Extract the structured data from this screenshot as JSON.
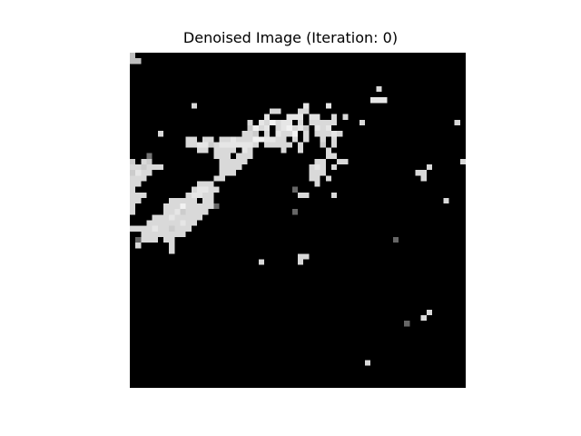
{
  "figure": {
    "title": "Denoised Image (Iteration: 0)"
  },
  "image": {
    "rows": 60,
    "cols": 60,
    "background": "#000000",
    "pixels": [
      [
        0,
        0,
        0.75
      ],
      [
        1,
        0,
        0.75
      ],
      [
        1,
        1,
        0.75
      ],
      [
        11,
        36,
        0.85
      ],
      [
        6,
        44,
        0.85
      ],
      [
        8,
        43,
        0.9
      ],
      [
        8,
        44,
        0.9
      ],
      [
        8,
        45,
        0.9
      ],
      [
        9,
        11,
        0.85
      ],
      [
        9,
        31,
        0.9
      ],
      [
        9,
        35,
        0.9
      ],
      [
        10,
        25,
        0.85
      ],
      [
        10,
        26,
        0.85
      ],
      [
        10,
        30,
        0.85
      ],
      [
        10,
        31,
        0.85
      ],
      [
        11,
        24,
        0.9
      ],
      [
        11,
        28,
        0.9
      ],
      [
        11,
        29,
        0.9
      ],
      [
        11,
        30,
        0.9
      ],
      [
        11,
        32,
        0.9
      ],
      [
        11,
        33,
        0.9
      ],
      [
        11,
        38,
        0.85
      ],
      [
        12,
        21,
        0.85
      ],
      [
        12,
        23,
        0.9
      ],
      [
        12,
        24,
        0.85
      ],
      [
        12,
        25,
        0.95
      ],
      [
        12,
        26,
        0.85
      ],
      [
        12,
        27,
        0.9
      ],
      [
        12,
        28,
        0.9
      ],
      [
        12,
        30,
        0.85
      ],
      [
        12,
        32,
        0.85
      ],
      [
        12,
        33,
        0.85
      ],
      [
        12,
        34,
        0.85
      ],
      [
        12,
        35,
        0.85
      ],
      [
        12,
        36,
        0.85
      ],
      [
        12,
        41,
        0.85
      ],
      [
        12,
        58,
        0.85
      ],
      [
        13,
        21,
        0.8
      ],
      [
        13,
        22,
        0.95
      ],
      [
        13,
        23,
        0.85
      ],
      [
        13,
        24,
        0.9
      ],
      [
        13,
        26,
        0.85
      ],
      [
        13,
        27,
        0.9
      ],
      [
        13,
        28,
        0.95
      ],
      [
        13,
        29,
        0.85
      ],
      [
        13,
        30,
        0.9
      ],
      [
        13,
        31,
        0.8
      ],
      [
        13,
        33,
        0.9
      ],
      [
        13,
        34,
        0.85
      ],
      [
        13,
        35,
        0.9
      ],
      [
        14,
        5,
        0.85
      ],
      [
        14,
        20,
        0.85
      ],
      [
        14,
        21,
        0.85
      ],
      [
        14,
        22,
        0.8
      ],
      [
        14,
        24,
        0.85
      ],
      [
        14,
        26,
        0.9
      ],
      [
        14,
        27,
        0.85
      ],
      [
        14,
        28,
        0.85
      ],
      [
        14,
        29,
        0.95
      ],
      [
        14,
        31,
        0.85
      ],
      [
        14,
        33,
        0.85
      ],
      [
        14,
        34,
        0.85
      ],
      [
        14,
        35,
        0.85
      ],
      [
        14,
        36,
        0.9
      ],
      [
        14,
        37,
        0.85
      ],
      [
        15,
        10,
        0.85
      ],
      [
        15,
        11,
        0.85
      ],
      [
        15,
        13,
        0.85
      ],
      [
        15,
        14,
        0.85
      ],
      [
        15,
        16,
        0.85
      ],
      [
        15,
        17,
        0.85
      ],
      [
        15,
        18,
        0.9
      ],
      [
        15,
        19,
        0.85
      ],
      [
        15,
        20,
        0.85
      ],
      [
        15,
        21,
        0.85
      ],
      [
        15,
        22,
        0.95
      ],
      [
        15,
        23,
        0.95
      ],
      [
        15,
        24,
        0.9
      ],
      [
        15,
        25,
        0.9
      ],
      [
        15,
        26,
        0.85
      ],
      [
        15,
        27,
        0.85
      ],
      [
        15,
        29,
        0.85
      ],
      [
        15,
        31,
        0.85
      ],
      [
        15,
        34,
        0.85
      ],
      [
        15,
        36,
        0.85
      ],
      [
        16,
        10,
        0.85
      ],
      [
        16,
        11,
        0.85
      ],
      [
        16,
        12,
        0.9
      ],
      [
        16,
        13,
        0.9
      ],
      [
        16,
        14,
        0.8
      ],
      [
        16,
        15,
        0.85
      ],
      [
        16,
        16,
        0.9
      ],
      [
        16,
        17,
        0.9
      ],
      [
        16,
        18,
        0.9
      ],
      [
        16,
        19,
        0.9
      ],
      [
        16,
        20,
        0.9
      ],
      [
        16,
        21,
        0.9
      ],
      [
        16,
        22,
        0.85
      ],
      [
        16,
        24,
        0.85
      ],
      [
        16,
        25,
        0.85
      ],
      [
        16,
        26,
        0.85
      ],
      [
        16,
        27,
        0.85
      ],
      [
        16,
        28,
        0.85
      ],
      [
        16,
        30,
        0.85
      ],
      [
        16,
        34,
        0.8
      ],
      [
        16,
        36,
        0.85
      ],
      [
        17,
        12,
        0.85
      ],
      [
        17,
        13,
        0.85
      ],
      [
        17,
        15,
        0.85
      ],
      [
        17,
        16,
        0.85
      ],
      [
        17,
        17,
        0.85
      ],
      [
        17,
        18,
        0.85
      ],
      [
        17,
        20,
        0.9
      ],
      [
        17,
        21,
        0.85
      ],
      [
        17,
        27,
        0.85
      ],
      [
        17,
        30,
        0.85
      ],
      [
        17,
        35,
        0.85
      ],
      [
        18,
        3,
        0.45
      ],
      [
        18,
        15,
        0.85
      ],
      [
        18,
        16,
        0.85
      ],
      [
        18,
        17,
        0.85
      ],
      [
        18,
        19,
        0.85
      ],
      [
        18,
        20,
        0.85
      ],
      [
        18,
        21,
        0.85
      ],
      [
        18,
        35,
        0.85
      ],
      [
        18,
        36,
        0.85
      ],
      [
        19,
        0,
        0.8
      ],
      [
        19,
        2,
        0.85
      ],
      [
        19,
        3,
        0.8
      ],
      [
        19,
        16,
        0.85
      ],
      [
        19,
        17,
        0.85
      ],
      [
        19,
        18,
        0.85
      ],
      [
        19,
        19,
        0.85
      ],
      [
        19,
        20,
        0.85
      ],
      [
        19,
        33,
        0.85
      ],
      [
        19,
        34,
        0.85
      ],
      [
        19,
        37,
        0.85
      ],
      [
        19,
        38,
        0.85
      ],
      [
        19,
        59,
        0.85
      ],
      [
        20,
        0,
        0.85
      ],
      [
        20,
        1,
        0.85
      ],
      [
        20,
        2,
        0.8
      ],
      [
        20,
        3,
        0.85
      ],
      [
        20,
        4,
        0.85
      ],
      [
        20,
        5,
        0.85
      ],
      [
        20,
        16,
        0.85
      ],
      [
        20,
        17,
        0.85
      ],
      [
        20,
        18,
        0.85
      ],
      [
        20,
        19,
        0.85
      ],
      [
        20,
        32,
        0.85
      ],
      [
        20,
        33,
        0.9
      ],
      [
        20,
        34,
        0.85
      ],
      [
        20,
        36,
        0.85
      ],
      [
        20,
        53,
        0.85
      ],
      [
        21,
        0,
        0.8
      ],
      [
        21,
        1,
        0.9
      ],
      [
        21,
        2,
        0.85
      ],
      [
        21,
        3,
        0.85
      ],
      [
        21,
        16,
        0.85
      ],
      [
        21,
        17,
        0.85
      ],
      [
        21,
        18,
        0.85
      ],
      [
        21,
        32,
        0.85
      ],
      [
        21,
        33,
        0.85
      ],
      [
        21,
        34,
        0.85
      ],
      [
        21,
        51,
        0.85
      ],
      [
        21,
        52,
        0.85
      ],
      [
        22,
        0,
        0.85
      ],
      [
        22,
        1,
        0.85
      ],
      [
        22,
        2,
        0.85
      ],
      [
        22,
        15,
        0.85
      ],
      [
        22,
        16,
        0.85
      ],
      [
        22,
        32,
        0.85
      ],
      [
        22,
        33,
        0.85
      ],
      [
        22,
        35,
        0.85
      ],
      [
        22,
        52,
        0.85
      ],
      [
        23,
        0,
        0.85
      ],
      [
        23,
        1,
        0.85
      ],
      [
        23,
        12,
        0.85
      ],
      [
        23,
        13,
        0.85
      ],
      [
        23,
        14,
        0.85
      ],
      [
        23,
        33,
        0.85
      ],
      [
        24,
        0,
        0.85
      ],
      [
        24,
        11,
        0.85
      ],
      [
        24,
        12,
        0.9
      ],
      [
        24,
        13,
        0.9
      ],
      [
        24,
        14,
        0.85
      ],
      [
        24,
        15,
        0.85
      ],
      [
        24,
        29,
        0.4
      ],
      [
        25,
        0,
        0.85
      ],
      [
        25,
        1,
        0.85
      ],
      [
        25,
        2,
        0.85
      ],
      [
        25,
        10,
        0.85
      ],
      [
        25,
        11,
        0.9
      ],
      [
        25,
        12,
        0.9
      ],
      [
        25,
        13,
        0.85
      ],
      [
        25,
        14,
        0.85
      ],
      [
        25,
        30,
        0.85
      ],
      [
        25,
        31,
        0.85
      ],
      [
        25,
        36,
        0.85
      ],
      [
        26,
        0,
        0.85
      ],
      [
        26,
        1,
        0.85
      ],
      [
        26,
        7,
        0.85
      ],
      [
        26,
        8,
        0.85
      ],
      [
        26,
        9,
        0.85
      ],
      [
        26,
        10,
        0.85
      ],
      [
        26,
        11,
        0.85
      ],
      [
        26,
        13,
        0.85
      ],
      [
        26,
        14,
        0.85
      ],
      [
        26,
        56,
        0.85
      ],
      [
        27,
        0,
        0.85
      ],
      [
        27,
        6,
        0.85
      ],
      [
        27,
        7,
        0.85
      ],
      [
        27,
        8,
        0.85
      ],
      [
        27,
        9,
        0.95
      ],
      [
        27,
        10,
        0.85
      ],
      [
        27,
        11,
        0.85
      ],
      [
        27,
        12,
        0.85
      ],
      [
        27,
        13,
        0.85
      ],
      [
        27,
        14,
        0.85
      ],
      [
        27,
        15,
        0.4
      ],
      [
        28,
        0,
        0.85
      ],
      [
        28,
        6,
        0.85
      ],
      [
        28,
        7,
        0.85
      ],
      [
        28,
        8,
        0.9
      ],
      [
        28,
        9,
        0.8
      ],
      [
        28,
        10,
        0.85
      ],
      [
        28,
        11,
        0.85
      ],
      [
        28,
        12,
        0.85
      ],
      [
        28,
        13,
        0.85
      ],
      [
        28,
        29,
        0.4
      ],
      [
        29,
        4,
        0.85
      ],
      [
        29,
        5,
        0.85
      ],
      [
        29,
        6,
        0.85
      ],
      [
        29,
        7,
        0.9
      ],
      [
        29,
        8,
        0.85
      ],
      [
        29,
        9,
        0.85
      ],
      [
        29,
        10,
        0.85
      ],
      [
        29,
        11,
        0.85
      ],
      [
        29,
        12,
        0.85
      ],
      [
        30,
        3,
        0.85
      ],
      [
        30,
        4,
        0.85
      ],
      [
        30,
        5,
        0.85
      ],
      [
        30,
        6,
        0.85
      ],
      [
        30,
        7,
        0.85
      ],
      [
        30,
        8,
        0.85
      ],
      [
        30,
        9,
        0.9
      ],
      [
        30,
        10,
        0.85
      ],
      [
        30,
        11,
        0.85
      ],
      [
        31,
        0,
        0.85
      ],
      [
        31,
        1,
        0.85
      ],
      [
        31,
        2,
        0.85
      ],
      [
        31,
        3,
        0.85
      ],
      [
        31,
        4,
        0.9
      ],
      [
        31,
        5,
        0.85
      ],
      [
        31,
        6,
        0.85
      ],
      [
        31,
        7,
        0.8
      ],
      [
        31,
        8,
        0.85
      ],
      [
        31,
        9,
        0.85
      ],
      [
        31,
        10,
        0.85
      ],
      [
        32,
        2,
        0.85
      ],
      [
        32,
        3,
        0.85
      ],
      [
        32,
        4,
        0.85
      ],
      [
        32,
        5,
        0.85
      ],
      [
        32,
        6,
        0.85
      ],
      [
        32,
        7,
        0.85
      ],
      [
        32,
        8,
        0.85
      ],
      [
        32,
        9,
        0.85
      ],
      [
        33,
        1,
        0.4
      ],
      [
        33,
        2,
        0.85
      ],
      [
        33,
        3,
        0.85
      ],
      [
        33,
        4,
        0.85
      ],
      [
        33,
        6,
        0.85
      ],
      [
        33,
        7,
        0.85
      ],
      [
        33,
        47,
        0.4
      ],
      [
        34,
        1,
        0.85
      ],
      [
        34,
        7,
        0.85
      ],
      [
        35,
        7,
        0.85
      ],
      [
        36,
        30,
        0.85
      ],
      [
        36,
        31,
        0.85
      ],
      [
        37,
        23,
        0.85
      ],
      [
        37,
        30,
        0.85
      ],
      [
        46,
        53,
        0.85
      ],
      [
        47,
        52,
        0.85
      ],
      [
        48,
        49,
        0.4
      ],
      [
        55,
        42,
        0.85
      ]
    ]
  }
}
